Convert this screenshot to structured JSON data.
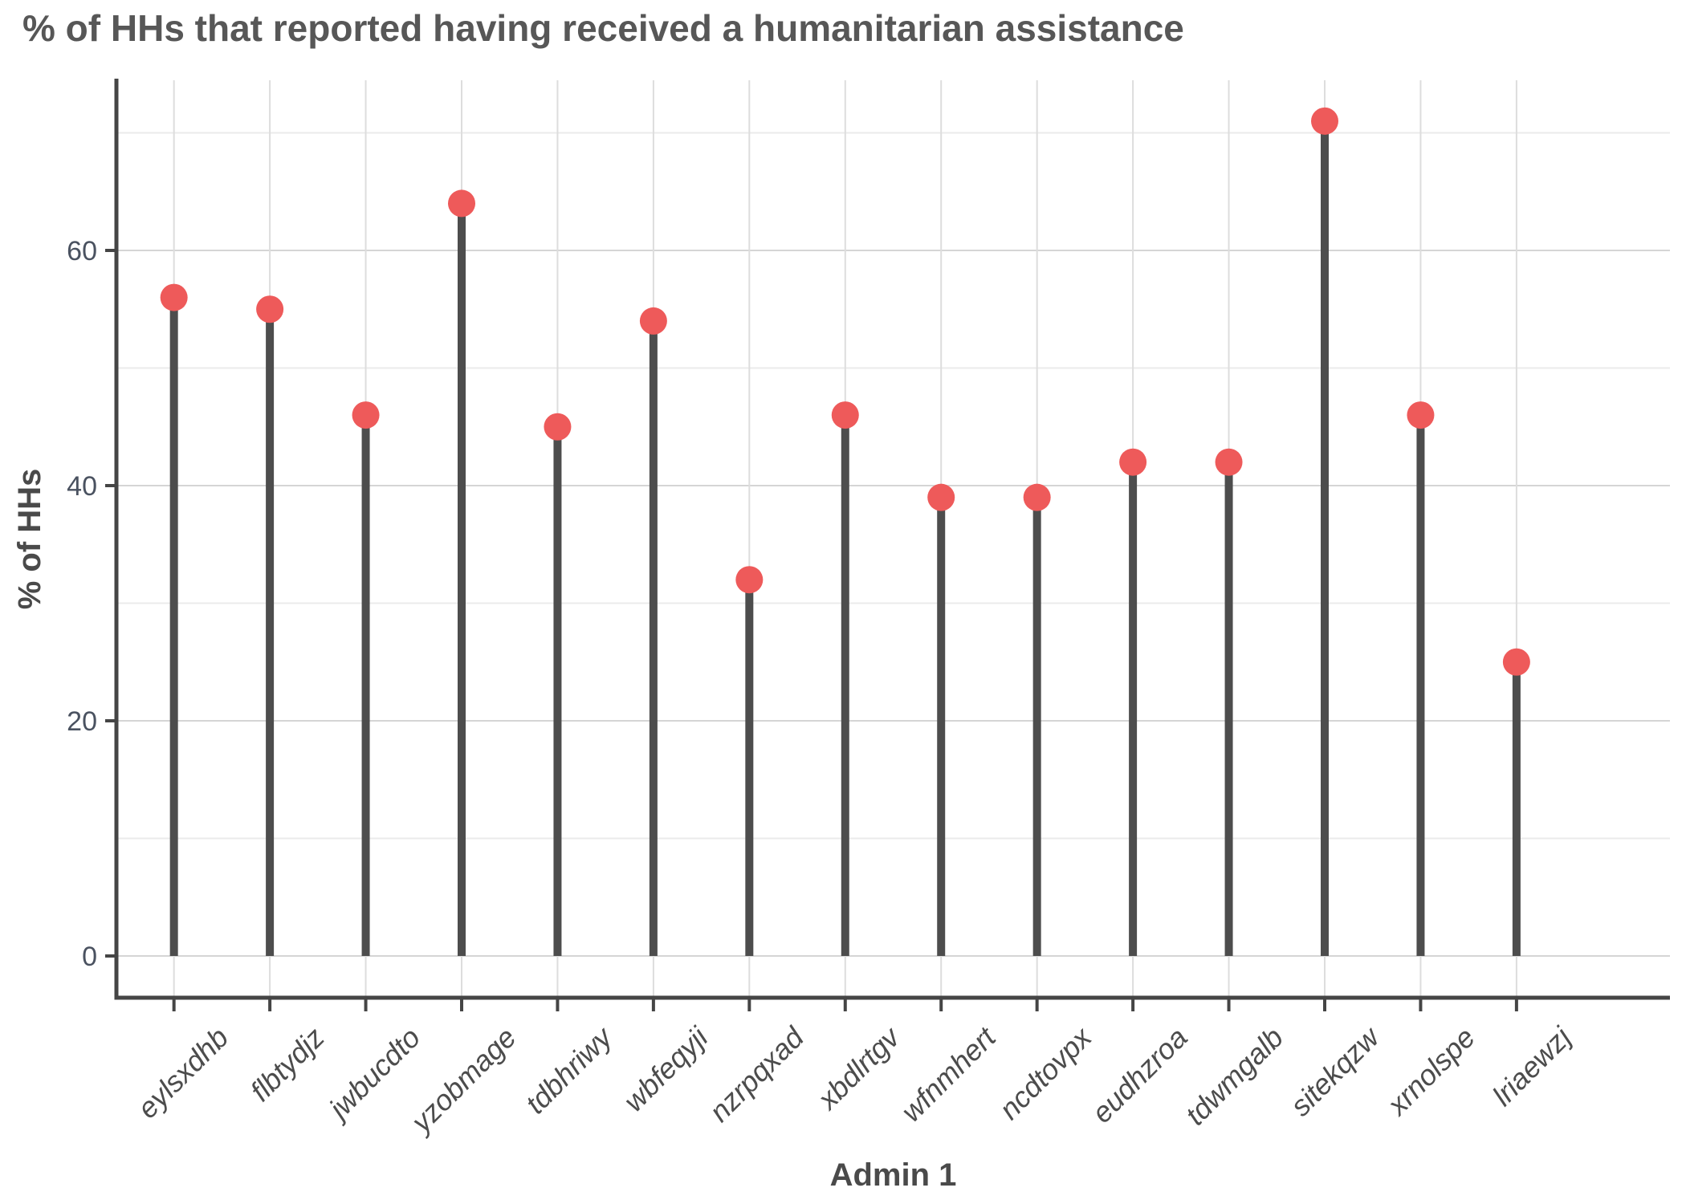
{
  "title": "% of HHs that reported having received a humanitarian assistance",
  "chart_data": {
    "type": "bar",
    "style": "lollipop",
    "title": "% of HHs that reported having received a humanitarian assistance",
    "xlabel": "Admin 1",
    "ylabel": "% of HHs",
    "categories": [
      "eylsxdhb",
      "flbtydjz",
      "jwbucdto",
      "yzobmage",
      "tdbhriwy",
      "wbfeqyji",
      "nzrpqxad",
      "xbdlrtgv",
      "wfnmhert",
      "ncdtovpx",
      "eudhzroa",
      "tdwmgalb",
      "sitekqzw",
      "xrnolspe",
      "lriaewzj"
    ],
    "values": [
      56,
      55,
      46,
      64,
      45,
      54,
      32,
      46,
      39,
      39,
      42,
      42,
      71,
      46,
      25
    ],
    "ylim": [
      0,
      74.5
    ],
    "yticks": [
      0,
      20,
      40,
      60
    ],
    "yticks_minor": [
      10,
      30,
      50,
      70
    ],
    "grid": "horizontal major + minor, vertical line per category, light gray on white",
    "legend": "none",
    "colors": {
      "point": "#EE5A5A",
      "stem": "#4D4D4D",
      "axis_line": "#454545",
      "grid_major": "#D5D5D5",
      "grid_minor": "#EBEBEB",
      "grid_vertical": "#DDDDDD",
      "title_text": "#575757",
      "axis_title_text": "#4A4A4A",
      "tick_label_y": "#4A5260",
      "tick_label_x": "#4C4C4C",
      "background": "#FFFFFF"
    }
  }
}
